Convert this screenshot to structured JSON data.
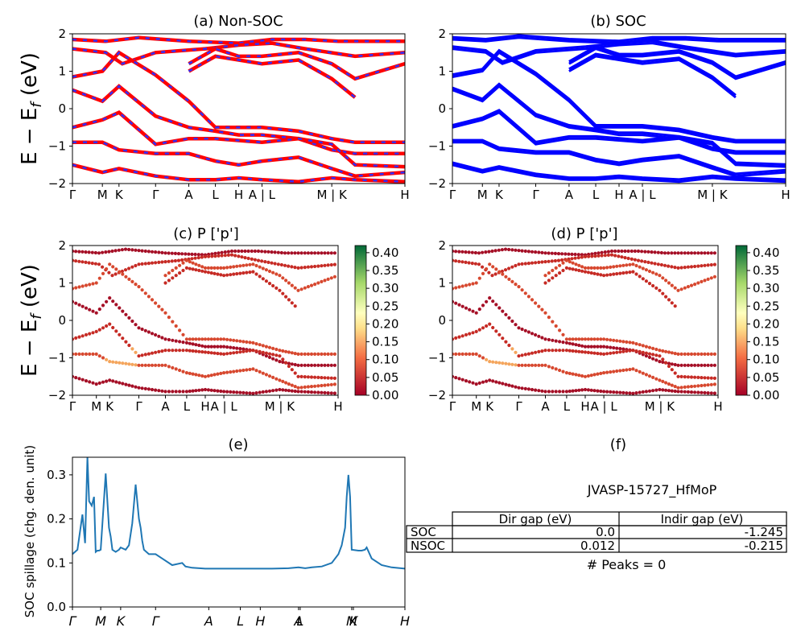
{
  "figure_id": "JVASP-15727_HfMoP",
  "colors": {
    "nonsoc_main": "#ff0000",
    "nonsoc_dash": "#3030ff",
    "soc": "#0000ff",
    "spillage": "#1f77b4"
  },
  "panels": {
    "a": {
      "title": "(a) Non-SOC",
      "ylabel": "E − E_f (eV)"
    },
    "b": {
      "title": "(b) SOC"
    },
    "c": {
      "title": "(c)  P ['p']",
      "ylabel": "E − E_f (eV)"
    },
    "d": {
      "title": "(d) P ['p']"
    },
    "e": {
      "title": "(e)",
      "ylabel": "SOC spillage (chg. den. unit)"
    },
    "f": {
      "title": "(f)"
    }
  },
  "kpath_labels_top": [
    "Γ",
    "M",
    "K",
    "Γ",
    "A",
    "L",
    "H",
    "A | L",
    "M | K",
    "H"
  ],
  "kpath_labels_mid": [
    "Γ",
    "M",
    "K",
    "Γ",
    "A",
    "L",
    "H",
    "A | L",
    "M | K",
    "H"
  ],
  "kpath_labels_spill": [
    "Γ",
    "M",
    "K",
    "Γ",
    "A",
    "L",
    "H",
    "A",
    "L",
    "M",
    "K",
    "H"
  ],
  "colorbar_ticks": [
    "0.00",
    "0.05",
    "0.10",
    "0.15",
    "0.20",
    "0.25",
    "0.30",
    "0.35",
    "0.40"
  ],
  "table": {
    "header": [
      "",
      "Dir gap (eV)",
      "Indir gap (eV)"
    ],
    "rows": [
      [
        "SOC",
        "0.0",
        "-1.245"
      ],
      [
        "NSOC",
        "0.012",
        "-0.215"
      ]
    ],
    "peaks": "# Peaks = 0"
  },
  "chart_data": [
    {
      "type": "line",
      "title": "(a) Non-SOC",
      "xlabel": "",
      "ylabel": "E − E_f (eV)",
      "ylim": [
        -2,
        2
      ],
      "yticks": [
        -2,
        -1,
        0,
        1,
        2
      ],
      "kpoints": [
        "Γ",
        "M",
        "K",
        "Γ",
        "A",
        "L",
        "H",
        "A | L",
        "M | K",
        "H"
      ],
      "series": [
        {
          "values": [
            [
              0,
              1.85
            ],
            [
              0.1,
              1.8
            ],
            [
              0.2,
              1.9
            ],
            [
              0.35,
              1.8
            ],
            [
              0.5,
              1.75
            ],
            [
              0.6,
              1.85
            ],
            [
              0.7,
              1.85
            ],
            [
              0.8,
              1.8
            ],
            [
              0.9,
              1.8
            ],
            [
              1,
              1.8
            ]
          ]
        },
        {
          "values": [
            [
              0,
              1.6
            ],
            [
              0.1,
              1.5
            ],
            [
              0.15,
              1.2
            ],
            [
              0.25,
              1.5
            ],
            [
              0.4,
              1.6
            ],
            [
              0.5,
              1.7
            ],
            [
              0.6,
              1.75
            ],
            [
              0.7,
              1.6
            ],
            [
              0.85,
              1.4
            ],
            [
              1,
              1.5
            ]
          ]
        },
        {
          "values": [
            [
              0,
              0.85
            ],
            [
              0.09,
              1.0
            ],
            [
              0.14,
              1.5
            ],
            [
              0.25,
              0.9
            ],
            [
              0.35,
              0.2
            ],
            [
              0.43,
              -0.5
            ],
            [
              0.5,
              -0.5
            ],
            [
              0.57,
              -0.5
            ],
            [
              0.68,
              -0.6
            ],
            [
              0.78,
              -0.8
            ],
            [
              0.85,
              -0.9
            ],
            [
              1,
              -0.9
            ]
          ]
        },
        {
          "values": [
            [
              0,
              0.5
            ],
            [
              0.09,
              0.2
            ],
            [
              0.14,
              0.6
            ],
            [
              0.25,
              -0.2
            ],
            [
              0.35,
              -0.5
            ],
            [
              0.43,
              -0.6
            ],
            [
              0.5,
              -0.7
            ],
            [
              0.57,
              -0.7
            ],
            [
              0.68,
              -0.8
            ],
            [
              0.78,
              -1.1
            ],
            [
              0.85,
              -1.2
            ],
            [
              1,
              -1.2
            ]
          ]
        },
        {
          "values": [
            [
              0,
              -0.5
            ],
            [
              0.09,
              -0.3
            ],
            [
              0.14,
              -0.1
            ],
            [
              0.25,
              -0.95
            ],
            [
              0.35,
              -0.8
            ],
            [
              0.43,
              -0.8
            ],
            [
              0.5,
              -0.85
            ],
            [
              0.57,
              -0.9
            ],
            [
              0.68,
              -0.8
            ],
            [
              0.78,
              -0.95
            ],
            [
              0.85,
              -1.5
            ],
            [
              1,
              -1.55
            ]
          ]
        },
        {
          "values": [
            [
              0,
              -0.9
            ],
            [
              0.09,
              -0.9
            ],
            [
              0.14,
              -1.1
            ],
            [
              0.25,
              -1.2
            ],
            [
              0.35,
              -1.2
            ],
            [
              0.43,
              -1.4
            ],
            [
              0.5,
              -1.5
            ],
            [
              0.57,
              -1.4
            ],
            [
              0.68,
              -1.3
            ],
            [
              0.78,
              -1.6
            ],
            [
              0.85,
              -1.8
            ],
            [
              1,
              -1.7
            ]
          ]
        },
        {
          "values": [
            [
              0,
              -1.5
            ],
            [
              0.09,
              -1.7
            ],
            [
              0.14,
              -1.6
            ],
            [
              0.25,
              -1.8
            ],
            [
              0.35,
              -1.9
            ],
            [
              0.43,
              -1.9
            ],
            [
              0.5,
              -1.85
            ],
            [
              0.57,
              -1.9
            ],
            [
              0.68,
              -1.95
            ],
            [
              0.78,
              -1.85
            ],
            [
              0.85,
              -1.9
            ],
            [
              1,
              -1.95
            ]
          ]
        },
        {
          "values": [
            [
              0.35,
              1.0
            ],
            [
              0.43,
              1.4
            ],
            [
              0.5,
              1.3
            ],
            [
              0.57,
              1.2
            ],
            [
              0.68,
              1.3
            ],
            [
              0.78,
              0.8
            ],
            [
              0.85,
              0.3
            ]
          ]
        },
        {
          "values": [
            [
              0.35,
              1.2
            ],
            [
              0.43,
              1.6
            ],
            [
              0.5,
              1.4
            ],
            [
              0.57,
              1.4
            ],
            [
              0.68,
              1.5
            ],
            [
              0.78,
              1.2
            ],
            [
              0.85,
              0.8
            ],
            [
              1,
              1.2
            ]
          ]
        }
      ]
    },
    {
      "type": "line",
      "title": "(b) SOC",
      "xlabel": "",
      "ylabel": "",
      "ylim": [
        -2,
        2
      ],
      "yticks": [
        -2,
        -1,
        0,
        1,
        2
      ],
      "kpoints": [
        "Γ",
        "M",
        "K",
        "Γ",
        "A",
        "L",
        "H",
        "A | L",
        "M | K",
        "H"
      ],
      "series_ref": "same band set as (a), with spin-orbit splitting"
    },
    {
      "type": "scatter",
      "title": "(c)  P ['p']",
      "xlabel": "",
      "ylabel": "E − E_f (eV)",
      "ylim": [
        -2,
        2
      ],
      "yticks": [
        -2,
        -1,
        0,
        1,
        2
      ],
      "colorbar_range": [
        0,
        0.42
      ],
      "kpoints": [
        "Γ",
        "M",
        "K",
        "Γ",
        "A",
        "L",
        "H",
        "A | L",
        "M | K",
        "H"
      ],
      "series_ref": "bands of (a) coloured by p-orbital weight"
    },
    {
      "type": "scatter",
      "title": "(d) P ['p']",
      "xlabel": "",
      "ylabel": "",
      "ylim": [
        -2,
        2
      ],
      "yticks": [
        -2,
        -1,
        0,
        1,
        2
      ],
      "colorbar_range": [
        0,
        0.42
      ],
      "kpoints": [
        "Γ",
        "M",
        "K",
        "Γ",
        "A",
        "L",
        "H",
        "A | L",
        "M | K",
        "H"
      ],
      "series_ref": "bands of (b) coloured by p-orbital weight"
    },
    {
      "type": "line",
      "title": "(e)",
      "xlabel": "",
      "ylabel": "SOC spillage (chg. den. unit)",
      "ylim": [
        0,
        0.34
      ],
      "yticks": [
        0.0,
        0.1,
        0.2,
        0.3
      ],
      "x": [
        0,
        0.015,
        0.03,
        0.038,
        0.045,
        0.05,
        0.058,
        0.065,
        0.07,
        0.075,
        0.08,
        0.085,
        0.1,
        0.11,
        0.115,
        0.12,
        0.13,
        0.14,
        0.145,
        0.16,
        0.17,
        0.18,
        0.19,
        0.2,
        0.205,
        0.21,
        0.215,
        0.23,
        0.25,
        0.27,
        0.3,
        0.33,
        0.34,
        0.36,
        0.4,
        0.45,
        0.5,
        0.55,
        0.6,
        0.65,
        0.68,
        0.7,
        0.72,
        0.75,
        0.78,
        0.8,
        0.81,
        0.82,
        0.825,
        0.83,
        0.835,
        0.84,
        0.86,
        0.87,
        0.88,
        0.885,
        0.9,
        0.93,
        0.96,
        1.0
      ],
      "values": [
        0.12,
        0.13,
        0.21,
        0.145,
        0.34,
        0.24,
        0.23,
        0.25,
        0.125,
        0.128,
        0.128,
        0.13,
        0.303,
        0.18,
        0.16,
        0.13,
        0.125,
        0.13,
        0.135,
        0.13,
        0.14,
        0.19,
        0.278,
        0.2,
        0.18,
        0.15,
        0.13,
        0.12,
        0.12,
        0.11,
        0.095,
        0.1,
        0.092,
        0.089,
        0.087,
        0.087,
        0.087,
        0.087,
        0.087,
        0.088,
        0.09,
        0.088,
        0.09,
        0.092,
        0.1,
        0.12,
        0.14,
        0.18,
        0.25,
        0.3,
        0.25,
        0.13,
        0.128,
        0.128,
        0.13,
        0.135,
        0.11,
        0.095,
        0.09,
        0.087
      ]
    }
  ]
}
